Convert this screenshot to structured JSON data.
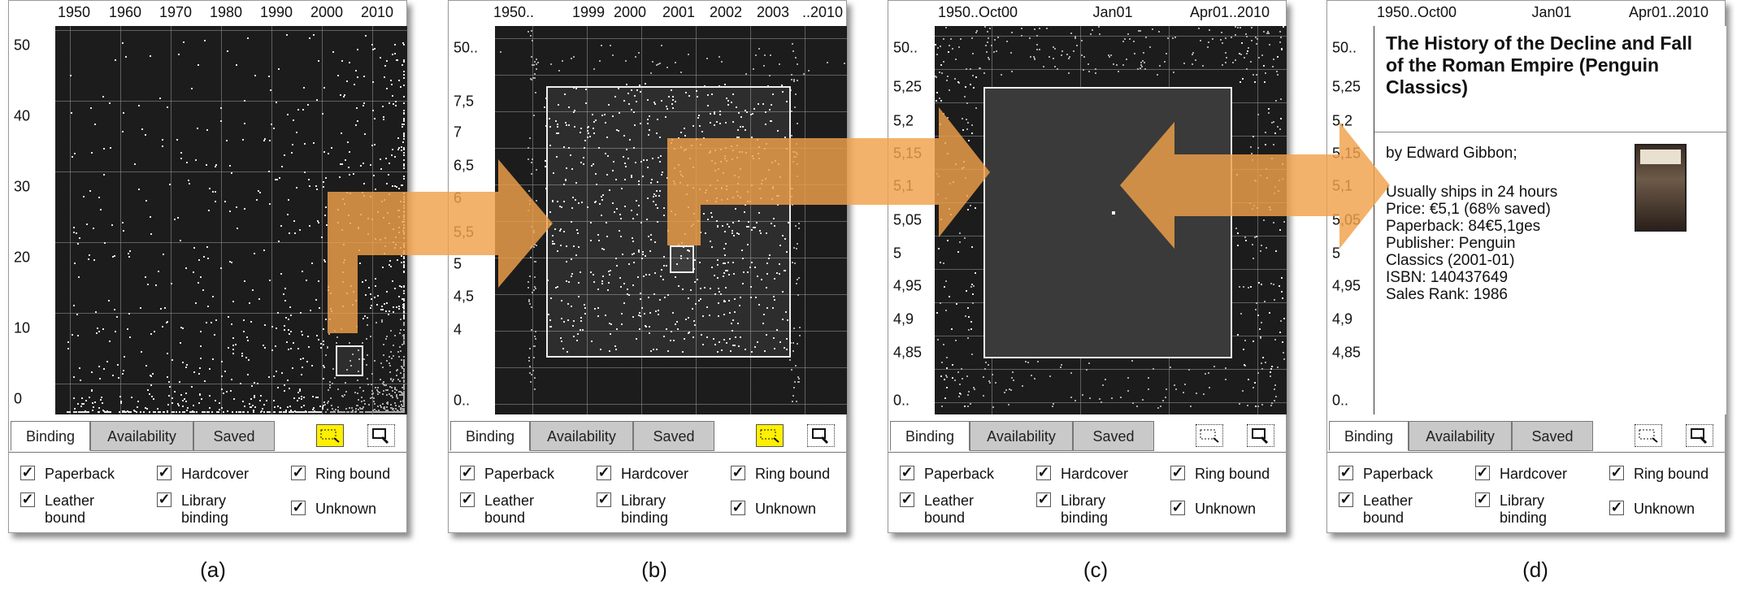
{
  "panels": [
    {
      "id": "a",
      "caption": "(a)",
      "x_ticks": [
        "1950",
        "1960",
        "1970",
        "1980",
        "1990",
        "2000",
        "2010"
      ],
      "y_ticks": [
        "50",
        "40",
        "30",
        "20",
        "10",
        "0"
      ],
      "tabs": [
        "Binding",
        "Availability",
        "Saved"
      ],
      "active_tab": "Binding",
      "select_tool_active": true
    },
    {
      "id": "b",
      "caption": "(b)",
      "x_ticks": [
        "1950..",
        "1999",
        "2000",
        "2001",
        "2002",
        "2003",
        "..2010"
      ],
      "y_ticks": [
        "50..",
        "7,5",
        "7",
        "6,5",
        "6",
        "5,5",
        "5",
        "4,5",
        "4",
        "0.."
      ],
      "tabs": [
        "Binding",
        "Availability",
        "Saved"
      ],
      "active_tab": "Binding",
      "select_tool_active": true
    },
    {
      "id": "c",
      "caption": "(c)",
      "x_ticks": [
        "1950..Oct00",
        "Jan01",
        "Apr01..2010"
      ],
      "y_ticks": [
        "50..",
        "5,25",
        "5,2",
        "5,15",
        "5,1",
        "5,05",
        "5",
        "4,95",
        "4,9",
        "4,85",
        "0.."
      ],
      "tabs": [
        "Binding",
        "Availability",
        "Saved"
      ],
      "active_tab": "Binding",
      "select_tool_active": false
    },
    {
      "id": "d",
      "caption": "(d)",
      "x_ticks": [
        "1950..Oct00",
        "Jan01",
        "Apr01..2010"
      ],
      "y_ticks": [
        "50..",
        "5,25",
        "5,2",
        "5,15",
        "5,1",
        "5,05",
        "5",
        "4,95",
        "4,9",
        "4,85",
        "0.."
      ],
      "tabs": [
        "Binding",
        "Availability",
        "Saved"
      ],
      "active_tab": "Binding",
      "select_tool_active": false
    }
  ],
  "checkboxes": [
    {
      "label": "Paperback",
      "checked": true
    },
    {
      "label": "Hardcover",
      "checked": true
    },
    {
      "label": "Ring bound",
      "checked": true
    },
    {
      "label": "Leather bound",
      "checked": true
    },
    {
      "label": "Library binding",
      "checked": true
    },
    {
      "label": "Unknown",
      "checked": true
    }
  ],
  "book": {
    "title": "The History of the Decline and Fall of the Roman Empire (Penguin Classics)",
    "author": "by Edward  Gibbon;",
    "shipping": "Usually ships in 24 hours",
    "price": "Price: €5,1 (68% saved)",
    "paperback": "Paperback: 84€5,1ges",
    "publisher_1": "Publisher: Penguin",
    "publisher_2": "Classics (2001-01)",
    "isbn": "ISBN: 140437649",
    "sales_rank": "Sales Rank: 1986"
  },
  "colors": {
    "plot_bg": "#1c1c1c",
    "dots": "#e8e8e8",
    "arrow": "#f0a14a",
    "tool_active": "#ffef00"
  }
}
